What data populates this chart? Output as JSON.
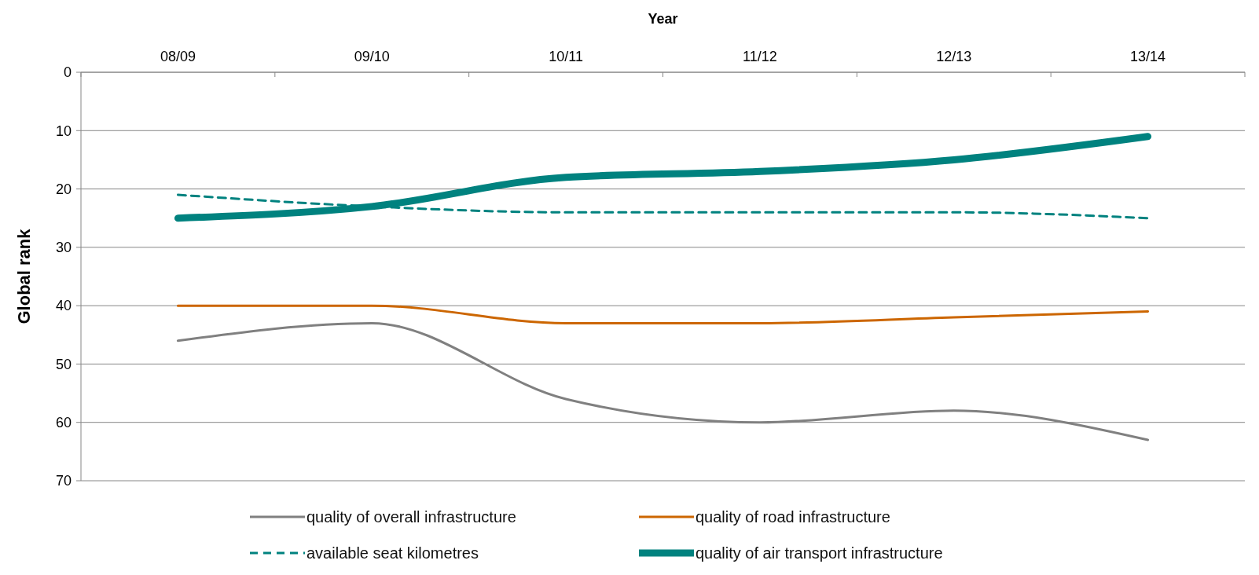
{
  "chart_data": {
    "type": "line",
    "xlabel": "Year",
    "ylabel": "Global rank",
    "categories": [
      "08/09",
      "09/10",
      "10/11",
      "11/12",
      "12/13",
      "13/14"
    ],
    "ylim": [
      70,
      0
    ],
    "yticks": [
      0,
      10,
      20,
      30,
      40,
      50,
      60,
      70
    ],
    "grid": "y",
    "legend": "bottom",
    "marker": "none",
    "series": [
      {
        "name": "quality of overall infrastructure",
        "color": "#808080",
        "values": [
          46,
          43,
          56,
          60,
          58,
          63
        ]
      },
      {
        "name": "quality of road infrastructure",
        "color": "#cc6600",
        "values": [
          40,
          40,
          43,
          43,
          42,
          41
        ]
      },
      {
        "name": "available seat kilometres",
        "color": "#00827f",
        "values": [
          21,
          23,
          24,
          24,
          24,
          25
        ],
        "line_style": "dashed"
      },
      {
        "name": "quality of air transport infrastructure",
        "color": "#00827f",
        "values": [
          25,
          23,
          18,
          17,
          15,
          11
        ]
      }
    ]
  }
}
